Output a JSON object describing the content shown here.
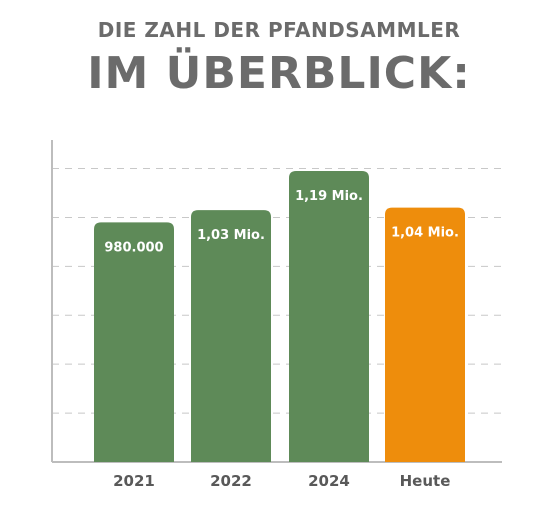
{
  "subtitle": "DIE ZAHL DER PFANDSAMMLER",
  "title": "IM ÜBERBLICK:",
  "colors": {
    "bar": "#5e8a58",
    "highlight": "#ee8d0c",
    "grid": "#c8c8c8",
    "axis": "#bdbdbd"
  },
  "chart_data": {
    "type": "bar",
    "categories": [
      "2021",
      "2022",
      "2024",
      "Heute"
    ],
    "values": [
      980000,
      1030000,
      1190000,
      1040000
    ],
    "value_labels": [
      "980.000",
      "1,03 Mio.",
      "1,19 Mio.",
      "1,04 Mio."
    ],
    "highlight_index": 3,
    "ylim": [
      0,
      1200000
    ],
    "grid": true
  }
}
